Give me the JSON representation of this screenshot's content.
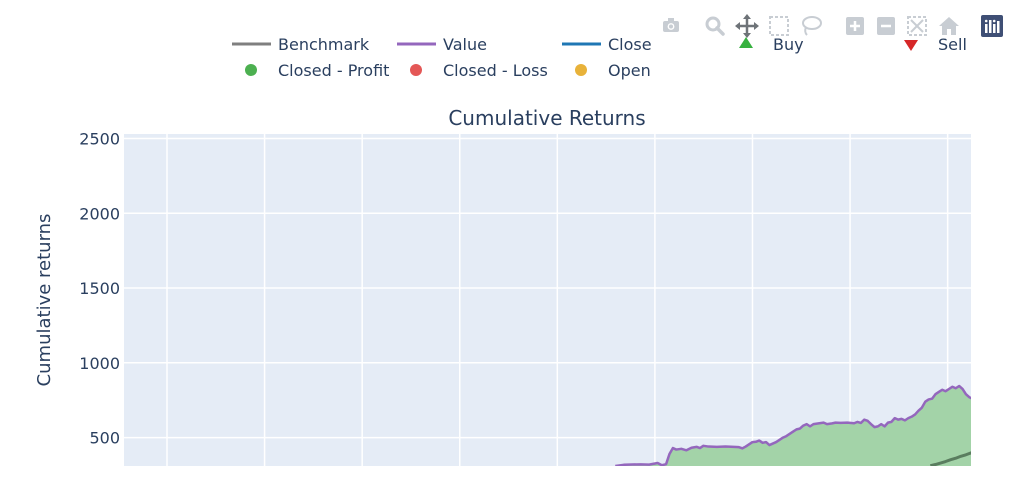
{
  "chart_data": {
    "type": "line",
    "title": "Cumulative Returns",
    "xlabel": "",
    "ylabel": "Cumulative returns",
    "ylim": [
      310,
      2530
    ],
    "yticks": [
      500,
      1000,
      1500,
      2000,
      2500
    ],
    "grid": true,
    "legend": {
      "placement": "top",
      "entries": [
        {
          "name": "Benchmark",
          "kind": "line",
          "color": "#7f7f7f"
        },
        {
          "name": "Value",
          "kind": "line",
          "color": "#9467bd"
        },
        {
          "name": "Close",
          "kind": "line",
          "color": "#1f77b4"
        },
        {
          "name": "Buy",
          "kind": "triangle-up",
          "color": "#37b13f"
        },
        {
          "name": "Closed - Profit",
          "kind": "circle",
          "color": "#4cb050"
        },
        {
          "name": "Closed - Loss",
          "kind": "circle",
          "color": "#e45756"
        },
        {
          "name": "Open",
          "kind": "circle",
          "color": "#e8b23a"
        },
        {
          "name": "Sell",
          "kind": "triangle-down",
          "color": "#d62728"
        }
      ]
    },
    "x_index_range": [
      0,
      100
    ],
    "series": [
      {
        "name": "Value",
        "color": "#9467bd",
        "fill_color": "#a3d3a8",
        "points": [
          [
            58,
            310
          ],
          [
            59,
            318
          ],
          [
            60,
            320
          ],
          [
            61,
            321
          ],
          [
            62,
            319
          ],
          [
            63,
            330
          ],
          [
            63.5,
            315
          ],
          [
            64,
            322
          ],
          [
            64.4,
            390
          ],
          [
            64.8,
            430
          ],
          [
            65.2,
            420
          ],
          [
            65.8,
            425
          ],
          [
            66.4,
            415
          ],
          [
            67,
            432
          ],
          [
            67.6,
            438
          ],
          [
            68,
            430
          ],
          [
            68.4,
            445
          ],
          [
            69,
            440
          ],
          [
            70,
            438
          ],
          [
            71,
            440
          ],
          [
            72,
            438
          ],
          [
            72.6,
            436
          ],
          [
            73,
            428
          ],
          [
            73.4,
            440
          ],
          [
            73.8,
            455
          ],
          [
            74.2,
            470
          ],
          [
            74.6,
            472
          ],
          [
            75,
            480
          ],
          [
            75.4,
            465
          ],
          [
            75.8,
            470
          ],
          [
            76.2,
            450
          ],
          [
            76.6,
            460
          ],
          [
            77,
            470
          ],
          [
            77.4,
            485
          ],
          [
            77.8,
            500
          ],
          [
            78.2,
            510
          ],
          [
            78.6,
            525
          ],
          [
            79,
            540
          ],
          [
            79.4,
            555
          ],
          [
            79.8,
            560
          ],
          [
            80.2,
            580
          ],
          [
            80.6,
            590
          ],
          [
            81,
            575
          ],
          [
            81.4,
            590
          ],
          [
            82,
            595
          ],
          [
            82.6,
            600
          ],
          [
            83,
            590
          ],
          [
            83.6,
            595
          ],
          [
            84,
            600
          ],
          [
            84.6,
            598
          ],
          [
            85.4,
            600
          ],
          [
            86.2,
            596
          ],
          [
            86.6,
            605
          ],
          [
            87,
            598
          ],
          [
            87.4,
            620
          ],
          [
            87.8,
            612
          ],
          [
            88.2,
            590
          ],
          [
            88.6,
            570
          ],
          [
            89,
            575
          ],
          [
            89.4,
            590
          ],
          [
            89.8,
            575
          ],
          [
            90.2,
            600
          ],
          [
            90.6,
            605
          ],
          [
            91,
            630
          ],
          [
            91.4,
            620
          ],
          [
            91.8,
            625
          ],
          [
            92.2,
            615
          ],
          [
            92.6,
            630
          ],
          [
            93,
            640
          ],
          [
            93.4,
            655
          ],
          [
            93.8,
            680
          ],
          [
            94.2,
            700
          ],
          [
            94.6,
            740
          ],
          [
            95,
            755
          ],
          [
            95.4,
            760
          ],
          [
            95.8,
            790
          ],
          [
            96.2,
            805
          ],
          [
            96.6,
            820
          ],
          [
            97,
            810
          ],
          [
            97.4,
            825
          ],
          [
            97.8,
            840
          ],
          [
            98.2,
            830
          ],
          [
            98.6,
            845
          ],
          [
            99,
            825
          ],
          [
            99.4,
            790
          ],
          [
            99.8,
            770
          ],
          [
            100.2,
            760
          ],
          [
            100.6,
            740
          ],
          [
            101,
            705
          ],
          [
            101.4,
            715
          ],
          [
            101.8,
            695
          ],
          [
            102.2,
            700
          ],
          [
            102.6,
            695
          ]
        ]
      },
      {
        "name": "Benchmark",
        "color": "#5a7d5f",
        "points": [
          [
            95.2,
            312
          ],
          [
            95.8,
            320
          ],
          [
            96.4,
            330
          ],
          [
            97,
            340
          ],
          [
            97.6,
            352
          ],
          [
            98.2,
            362
          ],
          [
            98.8,
            375
          ],
          [
            99.4,
            385
          ],
          [
            100,
            398
          ],
          [
            100.6,
            405
          ],
          [
            101.2,
            420
          ],
          [
            101.8,
            432
          ],
          [
            102.2,
            440
          ],
          [
            102.6,
            445
          ]
        ]
      }
    ]
  }
}
